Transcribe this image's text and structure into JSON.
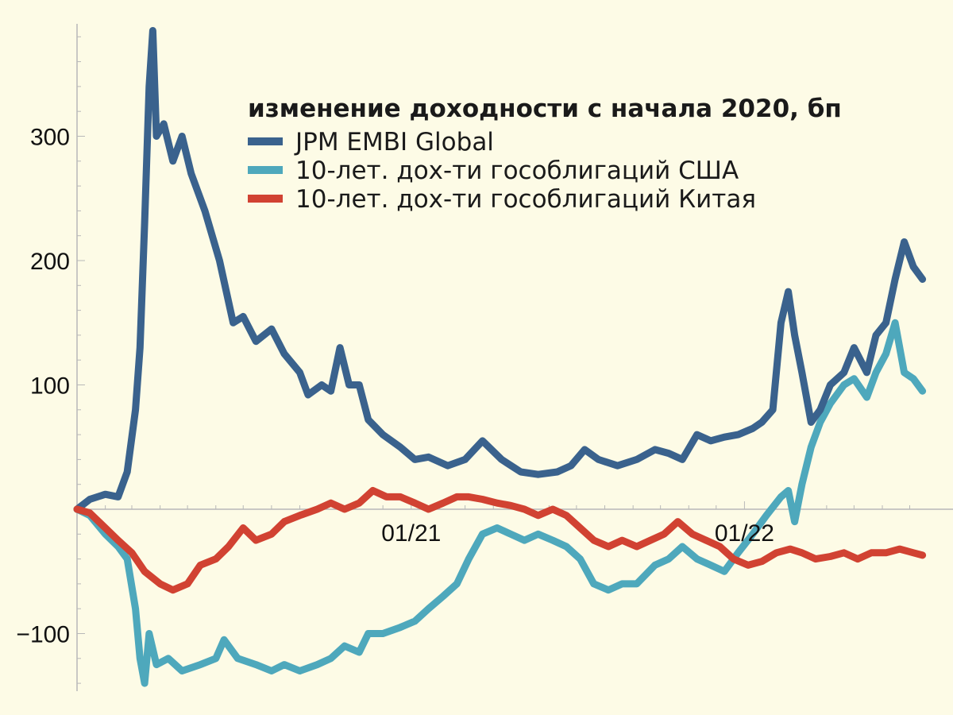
{
  "chart_data": {
    "type": "line",
    "title": "",
    "xlabel": "",
    "ylabel": "",
    "x_range": [
      "2020-01-01",
      "2022-07-31"
    ],
    "ylim": [
      -145,
      390
    ],
    "y_ticks": [
      {
        "value": 300,
        "label": "300"
      },
      {
        "value": 200,
        "label": "200"
      },
      {
        "value": 100,
        "label": "100"
      },
      {
        "value": -100,
        "label": "−100"
      }
    ],
    "x_ticks": [
      {
        "value": "2021-01-01",
        "label": "01/21"
      },
      {
        "value": "2022-01-01",
        "label": "01/22"
      }
    ],
    "grid": false,
    "legend": {
      "position": "top-right",
      "title": "изменение доходности с начала 2020, бп"
    },
    "series": [
      {
        "name": "JPM EMBI Global",
        "color": "#3a628d",
        "points": [
          [
            "2020-01-01",
            0
          ],
          [
            "2020-01-15",
            8
          ],
          [
            "2020-02-01",
            12
          ],
          [
            "2020-02-15",
            10
          ],
          [
            "2020-02-25",
            30
          ],
          [
            "2020-03-05",
            80
          ],
          [
            "2020-03-10",
            130
          ],
          [
            "2020-03-15",
            230
          ],
          [
            "2020-03-20",
            340
          ],
          [
            "2020-03-24",
            385
          ],
          [
            "2020-03-28",
            300
          ],
          [
            "2020-04-05",
            310
          ],
          [
            "2020-04-15",
            280
          ],
          [
            "2020-04-25",
            300
          ],
          [
            "2020-05-05",
            270
          ],
          [
            "2020-05-20",
            240
          ],
          [
            "2020-06-05",
            200
          ],
          [
            "2020-06-20",
            150
          ],
          [
            "2020-07-01",
            155
          ],
          [
            "2020-07-15",
            135
          ],
          [
            "2020-08-01",
            145
          ],
          [
            "2020-08-15",
            125
          ],
          [
            "2020-09-01",
            110
          ],
          [
            "2020-09-10",
            92
          ],
          [
            "2020-09-25",
            100
          ],
          [
            "2020-10-05",
            95
          ],
          [
            "2020-10-15",
            130
          ],
          [
            "2020-10-25",
            100
          ],
          [
            "2020-11-05",
            100
          ],
          [
            "2020-11-15",
            72
          ],
          [
            "2020-12-01",
            60
          ],
          [
            "2020-12-20",
            50
          ],
          [
            "2021-01-05",
            40
          ],
          [
            "2021-01-20",
            42
          ],
          [
            "2021-02-10",
            35
          ],
          [
            "2021-03-01",
            40
          ],
          [
            "2021-03-20",
            55
          ],
          [
            "2021-04-10",
            40
          ],
          [
            "2021-05-01",
            30
          ],
          [
            "2021-05-20",
            28
          ],
          [
            "2021-06-10",
            30
          ],
          [
            "2021-06-25",
            35
          ],
          [
            "2021-07-10",
            48
          ],
          [
            "2021-07-25",
            40
          ],
          [
            "2021-08-15",
            35
          ],
          [
            "2021-09-05",
            40
          ],
          [
            "2021-09-25",
            48
          ],
          [
            "2021-10-10",
            45
          ],
          [
            "2021-10-25",
            40
          ],
          [
            "2021-11-10",
            60
          ],
          [
            "2021-11-25",
            55
          ],
          [
            "2021-12-10",
            58
          ],
          [
            "2021-12-25",
            60
          ],
          [
            "2022-01-10",
            65
          ],
          [
            "2022-01-20",
            70
          ],
          [
            "2022-02-01",
            80
          ],
          [
            "2022-02-10",
            150
          ],
          [
            "2022-02-18",
            175
          ],
          [
            "2022-02-25",
            140
          ],
          [
            "2022-03-05",
            110
          ],
          [
            "2022-03-15",
            70
          ],
          [
            "2022-03-25",
            80
          ],
          [
            "2022-04-05",
            100
          ],
          [
            "2022-04-20",
            110
          ],
          [
            "2022-05-01",
            130
          ],
          [
            "2022-05-15",
            110
          ],
          [
            "2022-05-25",
            140
          ],
          [
            "2022-06-05",
            150
          ],
          [
            "2022-06-15",
            185
          ],
          [
            "2022-06-25",
            215
          ],
          [
            "2022-07-05",
            195
          ],
          [
            "2022-07-15",
            185
          ]
        ]
      },
      {
        "name": "10-лет. дох-ти гособлигаций США",
        "color": "#4ea8bc",
        "points": [
          [
            "2020-01-01",
            0
          ],
          [
            "2020-01-15",
            -5
          ],
          [
            "2020-02-01",
            -20
          ],
          [
            "2020-02-15",
            -30
          ],
          [
            "2020-02-25",
            -40
          ],
          [
            "2020-03-05",
            -80
          ],
          [
            "2020-03-10",
            -120
          ],
          [
            "2020-03-15",
            -140
          ],
          [
            "2020-03-20",
            -100
          ],
          [
            "2020-03-28",
            -125
          ],
          [
            "2020-04-10",
            -120
          ],
          [
            "2020-04-25",
            -130
          ],
          [
            "2020-05-15",
            -125
          ],
          [
            "2020-06-01",
            -120
          ],
          [
            "2020-06-10",
            -105
          ],
          [
            "2020-06-25",
            -120
          ],
          [
            "2020-07-15",
            -125
          ],
          [
            "2020-08-01",
            -130
          ],
          [
            "2020-08-15",
            -125
          ],
          [
            "2020-09-01",
            -130
          ],
          [
            "2020-09-20",
            -125
          ],
          [
            "2020-10-05",
            -120
          ],
          [
            "2020-10-20",
            -110
          ],
          [
            "2020-11-05",
            -115
          ],
          [
            "2020-11-15",
            -100
          ],
          [
            "2020-12-01",
            -100
          ],
          [
            "2020-12-20",
            -95
          ],
          [
            "2021-01-05",
            -90
          ],
          [
            "2021-01-20",
            -80
          ],
          [
            "2021-02-05",
            -70
          ],
          [
            "2021-02-20",
            -60
          ],
          [
            "2021-03-05",
            -40
          ],
          [
            "2021-03-20",
            -20
          ],
          [
            "2021-04-05",
            -15
          ],
          [
            "2021-04-20",
            -20
          ],
          [
            "2021-05-05",
            -25
          ],
          [
            "2021-05-20",
            -20
          ],
          [
            "2021-06-05",
            -25
          ],
          [
            "2021-06-20",
            -30
          ],
          [
            "2021-07-05",
            -40
          ],
          [
            "2021-07-20",
            -60
          ],
          [
            "2021-08-05",
            -65
          ],
          [
            "2021-08-20",
            -60
          ],
          [
            "2021-09-05",
            -60
          ],
          [
            "2021-09-25",
            -45
          ],
          [
            "2021-10-10",
            -40
          ],
          [
            "2021-10-25",
            -30
          ],
          [
            "2021-11-10",
            -40
          ],
          [
            "2021-11-25",
            -45
          ],
          [
            "2021-12-10",
            -50
          ],
          [
            "2021-12-25",
            -35
          ],
          [
            "2022-01-10",
            -20
          ],
          [
            "2022-01-25",
            -5
          ],
          [
            "2022-02-10",
            10
          ],
          [
            "2022-02-18",
            15
          ],
          [
            "2022-02-25",
            -10
          ],
          [
            "2022-03-05",
            20
          ],
          [
            "2022-03-15",
            50
          ],
          [
            "2022-03-25",
            70
          ],
          [
            "2022-04-05",
            85
          ],
          [
            "2022-04-20",
            100
          ],
          [
            "2022-05-01",
            105
          ],
          [
            "2022-05-15",
            90
          ],
          [
            "2022-05-25",
            110
          ],
          [
            "2022-06-05",
            125
          ],
          [
            "2022-06-15",
            150
          ],
          [
            "2022-06-25",
            110
          ],
          [
            "2022-07-05",
            105
          ],
          [
            "2022-07-15",
            95
          ]
        ]
      },
      {
        "name": "10-лет. дох-ти гособлигаций Китая",
        "color": "#d14232",
        "points": [
          [
            "2020-01-01",
            0
          ],
          [
            "2020-01-15",
            -3
          ],
          [
            "2020-02-01",
            -15
          ],
          [
            "2020-02-15",
            -25
          ],
          [
            "2020-03-01",
            -35
          ],
          [
            "2020-03-15",
            -50
          ],
          [
            "2020-04-01",
            -60
          ],
          [
            "2020-04-15",
            -65
          ],
          [
            "2020-05-01",
            -60
          ],
          [
            "2020-05-15",
            -45
          ],
          [
            "2020-06-01",
            -40
          ],
          [
            "2020-06-15",
            -30
          ],
          [
            "2020-07-01",
            -15
          ],
          [
            "2020-07-15",
            -25
          ],
          [
            "2020-08-01",
            -20
          ],
          [
            "2020-08-15",
            -10
          ],
          [
            "2020-09-01",
            -5
          ],
          [
            "2020-09-20",
            0
          ],
          [
            "2020-10-05",
            5
          ],
          [
            "2020-10-20",
            0
          ],
          [
            "2020-11-05",
            5
          ],
          [
            "2020-11-20",
            15
          ],
          [
            "2020-12-05",
            10
          ],
          [
            "2020-12-20",
            10
          ],
          [
            "2021-01-05",
            5
          ],
          [
            "2021-01-20",
            0
          ],
          [
            "2021-02-05",
            5
          ],
          [
            "2021-02-20",
            10
          ],
          [
            "2021-03-05",
            10
          ],
          [
            "2021-03-20",
            8
          ],
          [
            "2021-04-05",
            5
          ],
          [
            "2021-04-20",
            3
          ],
          [
            "2021-05-05",
            0
          ],
          [
            "2021-05-20",
            -5
          ],
          [
            "2021-06-05",
            0
          ],
          [
            "2021-06-20",
            -5
          ],
          [
            "2021-07-05",
            -15
          ],
          [
            "2021-07-20",
            -25
          ],
          [
            "2021-08-05",
            -30
          ],
          [
            "2021-08-20",
            -25
          ],
          [
            "2021-09-05",
            -30
          ],
          [
            "2021-09-20",
            -25
          ],
          [
            "2021-10-05",
            -20
          ],
          [
            "2021-10-20",
            -10
          ],
          [
            "2021-11-05",
            -20
          ],
          [
            "2021-11-20",
            -25
          ],
          [
            "2021-12-05",
            -30
          ],
          [
            "2021-12-20",
            -40
          ],
          [
            "2022-01-05",
            -45
          ],
          [
            "2022-01-20",
            -42
          ],
          [
            "2022-02-05",
            -35
          ],
          [
            "2022-02-20",
            -32
          ],
          [
            "2022-03-05",
            -35
          ],
          [
            "2022-03-20",
            -40
          ],
          [
            "2022-04-05",
            -38
          ],
          [
            "2022-04-20",
            -35
          ],
          [
            "2022-05-05",
            -40
          ],
          [
            "2022-05-20",
            -35
          ],
          [
            "2022-06-05",
            -35
          ],
          [
            "2022-06-20",
            -32
          ],
          [
            "2022-07-05",
            -35
          ],
          [
            "2022-07-15",
            -37
          ]
        ]
      }
    ]
  }
}
